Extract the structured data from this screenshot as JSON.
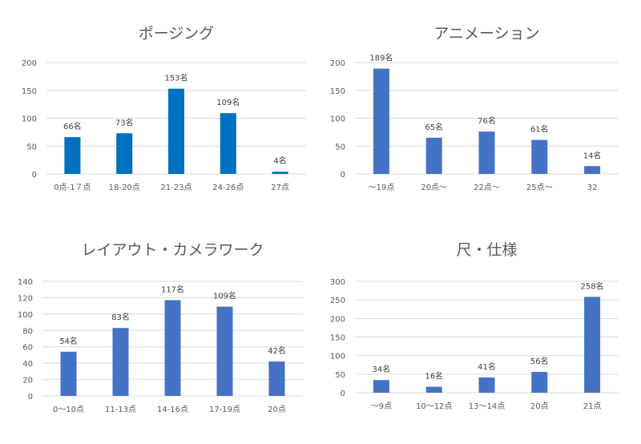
{
  "chart_data": [
    {
      "type": "bar",
      "title": "ポージング",
      "categories": [
        "0点-1７点",
        "18-20点",
        "21-23点",
        "24-26点",
        "27点"
      ],
      "values": [
        66,
        73,
        153,
        109,
        4
      ],
      "data_labels": [
        "66名",
        "73名",
        "153名",
        "109名",
        "4名"
      ],
      "ylim": [
        0,
        200
      ],
      "yticks": [
        0,
        50,
        100,
        150,
        200
      ],
      "grid": true,
      "color": "#0070C0"
    },
    {
      "type": "bar",
      "title": "アニメーション",
      "categories": [
        "〜19点",
        "20点〜",
        "22点〜",
        "25点〜",
        "32"
      ],
      "values": [
        189,
        65,
        76,
        61,
        14
      ],
      "data_labels": [
        "189名",
        "65名",
        "76名",
        "61名",
        "14名"
      ],
      "ylim": [
        0,
        200
      ],
      "yticks": [
        0,
        50,
        100,
        150,
        200
      ],
      "grid": true,
      "color": "#4472C4"
    },
    {
      "type": "bar",
      "title": "レイアウト・カメラワーク",
      "categories": [
        "0〜10点",
        "11-13点",
        "14-16点",
        "17-19点",
        "20点"
      ],
      "values": [
        54,
        83,
        117,
        109,
        42
      ],
      "data_labels": [
        "54名",
        "83名",
        "117名",
        "109名",
        "42名"
      ],
      "ylim": [
        0,
        140
      ],
      "yticks": [
        0,
        20,
        40,
        60,
        80,
        100,
        120,
        140
      ],
      "grid": true,
      "color": "#4472C4"
    },
    {
      "type": "bar",
      "title": "尺・仕様",
      "categories": [
        "〜9点",
        "10〜12点",
        "13〜14点",
        "20点",
        "21点"
      ],
      "values": [
        34,
        16,
        41,
        56,
        258
      ],
      "data_labels": [
        "34名",
        "16名",
        "41名",
        "56名",
        "258名"
      ],
      "ylim": [
        0,
        300
      ],
      "yticks": [
        0,
        50,
        100,
        150,
        200,
        250,
        300
      ],
      "grid": true,
      "color": "#4472C4"
    }
  ]
}
